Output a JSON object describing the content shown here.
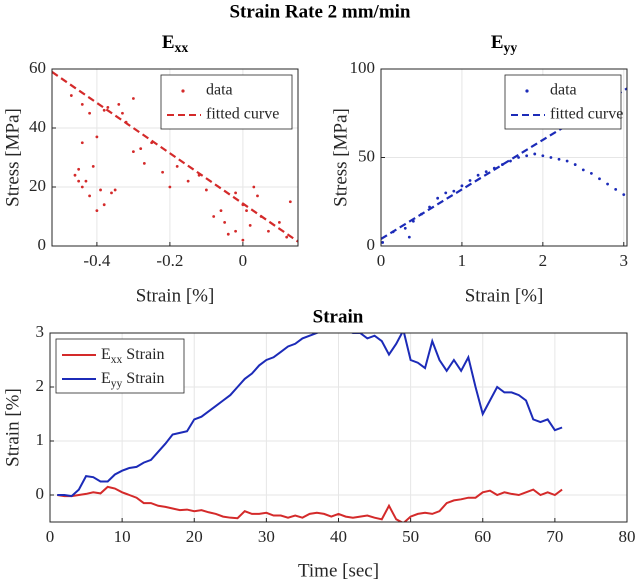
{
  "suptitle": "Strain Rate 2 mm/min",
  "chart_data": [
    {
      "type": "scatter",
      "title": {
        "base": "E",
        "sub": "xx"
      },
      "x_label": "Strain [%]",
      "y_label": "Stress [MPa]",
      "xlim": [
        -0.523,
        0.151
      ],
      "ylim": [
        0,
        60
      ],
      "xticks": [
        -0.4,
        -0.2,
        0
      ],
      "yticks": [
        0,
        20,
        40,
        60
      ],
      "grid": true,
      "legend": "northeast",
      "series": [
        {
          "name": "data",
          "color": "#d42a2a",
          "style": "markers",
          "x": [
            -0.45,
            -0.46,
            -0.44,
            -0.45,
            -0.43,
            -0.44,
            -0.42,
            -0.41,
            -0.4,
            -0.39,
            -0.38,
            -0.37,
            -0.36,
            -0.35,
            -0.34,
            -0.33,
            -0.32,
            -0.3,
            -0.3,
            -0.28,
            -0.27,
            -0.25,
            -0.22,
            -0.2,
            -0.18,
            -0.15,
            -0.12,
            -0.1,
            -0.08,
            -0.06,
            -0.05,
            -0.04,
            -0.02,
            0,
            0.01,
            0.02,
            0.03,
            0.04,
            0.05,
            0.07,
            0.1,
            0.13,
            -0.47,
            -0.44,
            -0.42,
            -0.4,
            -0.38,
            0.0,
            -0.02,
            0.12
          ],
          "values": [
            22,
            24,
            20,
            26,
            22,
            35,
            17,
            27,
            37,
            19,
            46,
            47,
            18,
            19,
            48,
            45,
            42,
            50,
            32,
            33,
            28,
            35,
            25,
            20,
            27,
            22,
            24,
            19,
            10,
            12,
            8,
            4,
            5,
            2,
            12,
            7,
            20,
            17,
            10,
            5,
            8,
            15,
            51,
            48,
            45,
            12,
            14,
            14,
            18,
            3
          ]
        },
        {
          "name": "fitted curve",
          "color": "#d42a2a",
          "style": "dashed",
          "x": [
            -0.523,
            0.151
          ],
          "values": [
            59,
            1.5
          ]
        }
      ]
    },
    {
      "type": "scatter",
      "title": {
        "base": "E",
        "sub": "yy"
      },
      "x_label": "Strain [%]",
      "y_label": "Stress [MPa]",
      "xlim": [
        0,
        3.04
      ],
      "ylim": [
        0,
        100
      ],
      "xticks": [
        0,
        1,
        2,
        3
      ],
      "yticks": [
        0,
        50,
        100
      ],
      "grid": true,
      "legend": "northeast",
      "series": [
        {
          "name": "data",
          "color": "#1c2bb8",
          "style": "markers",
          "x": [
            0.02,
            0.15,
            0.3,
            0.35,
            0.4,
            0.5,
            0.6,
            0.7,
            0.8,
            0.9,
            1.0,
            1.1,
            1.2,
            1.3,
            1.4,
            1.5,
            1.6,
            1.7,
            1.8,
            1.9,
            2.0,
            2.1,
            2.2,
            2.3,
            2.4,
            2.5,
            2.6,
            2.7,
            2.8,
            2.9,
            3.0
          ],
          "values": [
            2,
            8,
            10,
            5,
            14,
            18,
            22,
            27,
            30,
            31,
            34,
            37,
            40,
            42,
            44,
            46,
            48,
            50,
            51,
            52,
            51,
            50,
            49,
            48,
            46,
            43,
            41,
            38,
            35,
            32,
            29
          ]
        },
        {
          "name": "fitted curve",
          "color": "#1c2bb8",
          "style": "dashed",
          "x": [
            0,
            3.04
          ],
          "values": [
            4,
            89
          ]
        }
      ]
    },
    {
      "type": "line",
      "title": "Strain",
      "x_label": "Time [sec]",
      "y_label": "Strain [%]",
      "xlim": [
        0,
        80
      ],
      "ylim": [
        -0.5,
        3
      ],
      "xticks": [
        0,
        10,
        20,
        30,
        40,
        50,
        60,
        70,
        80
      ],
      "yticks": [
        0,
        1,
        2,
        3
      ],
      "grid": true,
      "legend": "northwest",
      "series": [
        {
          "name": {
            "base": "E",
            "sub": "xx",
            "rest": " Strain"
          },
          "color": "#d42a2a",
          "style": "solid",
          "x": [
            1,
            2,
            3,
            4,
            5,
            6,
            7,
            8,
            9,
            10,
            11,
            12,
            13,
            14,
            15,
            16,
            17,
            18,
            19,
            20,
            21,
            22,
            23,
            24,
            25,
            26,
            27,
            28,
            29,
            30,
            31,
            32,
            33,
            34,
            35,
            36,
            37,
            38,
            39,
            40,
            41,
            42,
            43,
            44,
            45,
            46,
            47,
            48,
            49,
            50,
            51,
            52,
            53,
            54,
            55,
            56,
            57,
            58,
            59,
            60,
            61,
            62,
            63,
            64,
            65,
            66,
            67,
            68,
            69,
            70,
            71
          ],
          "values": [
            0,
            -0.02,
            -0.02,
            0,
            0.02,
            0.05,
            0.03,
            0.15,
            0.12,
            0.05,
            0,
            -0.05,
            -0.15,
            -0.15,
            -0.2,
            -0.22,
            -0.25,
            -0.28,
            -0.27,
            -0.3,
            -0.28,
            -0.32,
            -0.35,
            -0.4,
            -0.42,
            -0.43,
            -0.3,
            -0.35,
            -0.35,
            -0.33,
            -0.38,
            -0.38,
            -0.42,
            -0.38,
            -0.42,
            -0.35,
            -0.33,
            -0.35,
            -0.4,
            -0.35,
            -0.4,
            -0.42,
            -0.4,
            -0.38,
            -0.42,
            -0.45,
            -0.2,
            -0.45,
            -0.52,
            -0.4,
            -0.35,
            -0.33,
            -0.35,
            -0.3,
            -0.15,
            -0.1,
            -0.08,
            -0.05,
            -0.05,
            0.05,
            0.08,
            0,
            0.05,
            0.02,
            0,
            0.05,
            0.1,
            0,
            0.05,
            0,
            0.1
          ]
        },
        {
          "name": {
            "base": "E",
            "sub": "yy",
            "rest": " Strain"
          },
          "color": "#1c2bb8",
          "style": "solid",
          "x": [
            1,
            2,
            3,
            4,
            5,
            6,
            7,
            8,
            9,
            10,
            11,
            12,
            13,
            14,
            15,
            16,
            17,
            18,
            19,
            20,
            21,
            22,
            23,
            24,
            25,
            26,
            27,
            28,
            29,
            30,
            31,
            32,
            33,
            34,
            35,
            36,
            37,
            38,
            39,
            40,
            41,
            42,
            43,
            44,
            45,
            46,
            47,
            48,
            49,
            50,
            51,
            52,
            53,
            54,
            55,
            56,
            57,
            58,
            59,
            60,
            61,
            62,
            63,
            64,
            65,
            66,
            67,
            68,
            69,
            70,
            71
          ],
          "values": [
            0,
            0,
            -0.02,
            0.1,
            0.35,
            0.33,
            0.25,
            0.25,
            0.38,
            0.45,
            0.5,
            0.52,
            0.6,
            0.65,
            0.8,
            0.95,
            1.12,
            1.15,
            1.18,
            1.4,
            1.45,
            1.55,
            1.65,
            1.75,
            1.85,
            2.0,
            2.15,
            2.25,
            2.4,
            2.5,
            2.55,
            2.65,
            2.75,
            2.8,
            2.9,
            2.95,
            3.0,
            3.05,
            3.05,
            3.05,
            3.05,
            3.0,
            3.0,
            2.9,
            2.95,
            2.85,
            2.6,
            2.8,
            3.05,
            2.5,
            2.45,
            2.35,
            2.85,
            2.5,
            2.3,
            2.5,
            2.3,
            2.55,
            2.0,
            1.5,
            1.75,
            2.0,
            1.9,
            1.9,
            1.85,
            1.75,
            1.4,
            1.35,
            1.4,
            1.2,
            1.25
          ]
        }
      ]
    }
  ]
}
